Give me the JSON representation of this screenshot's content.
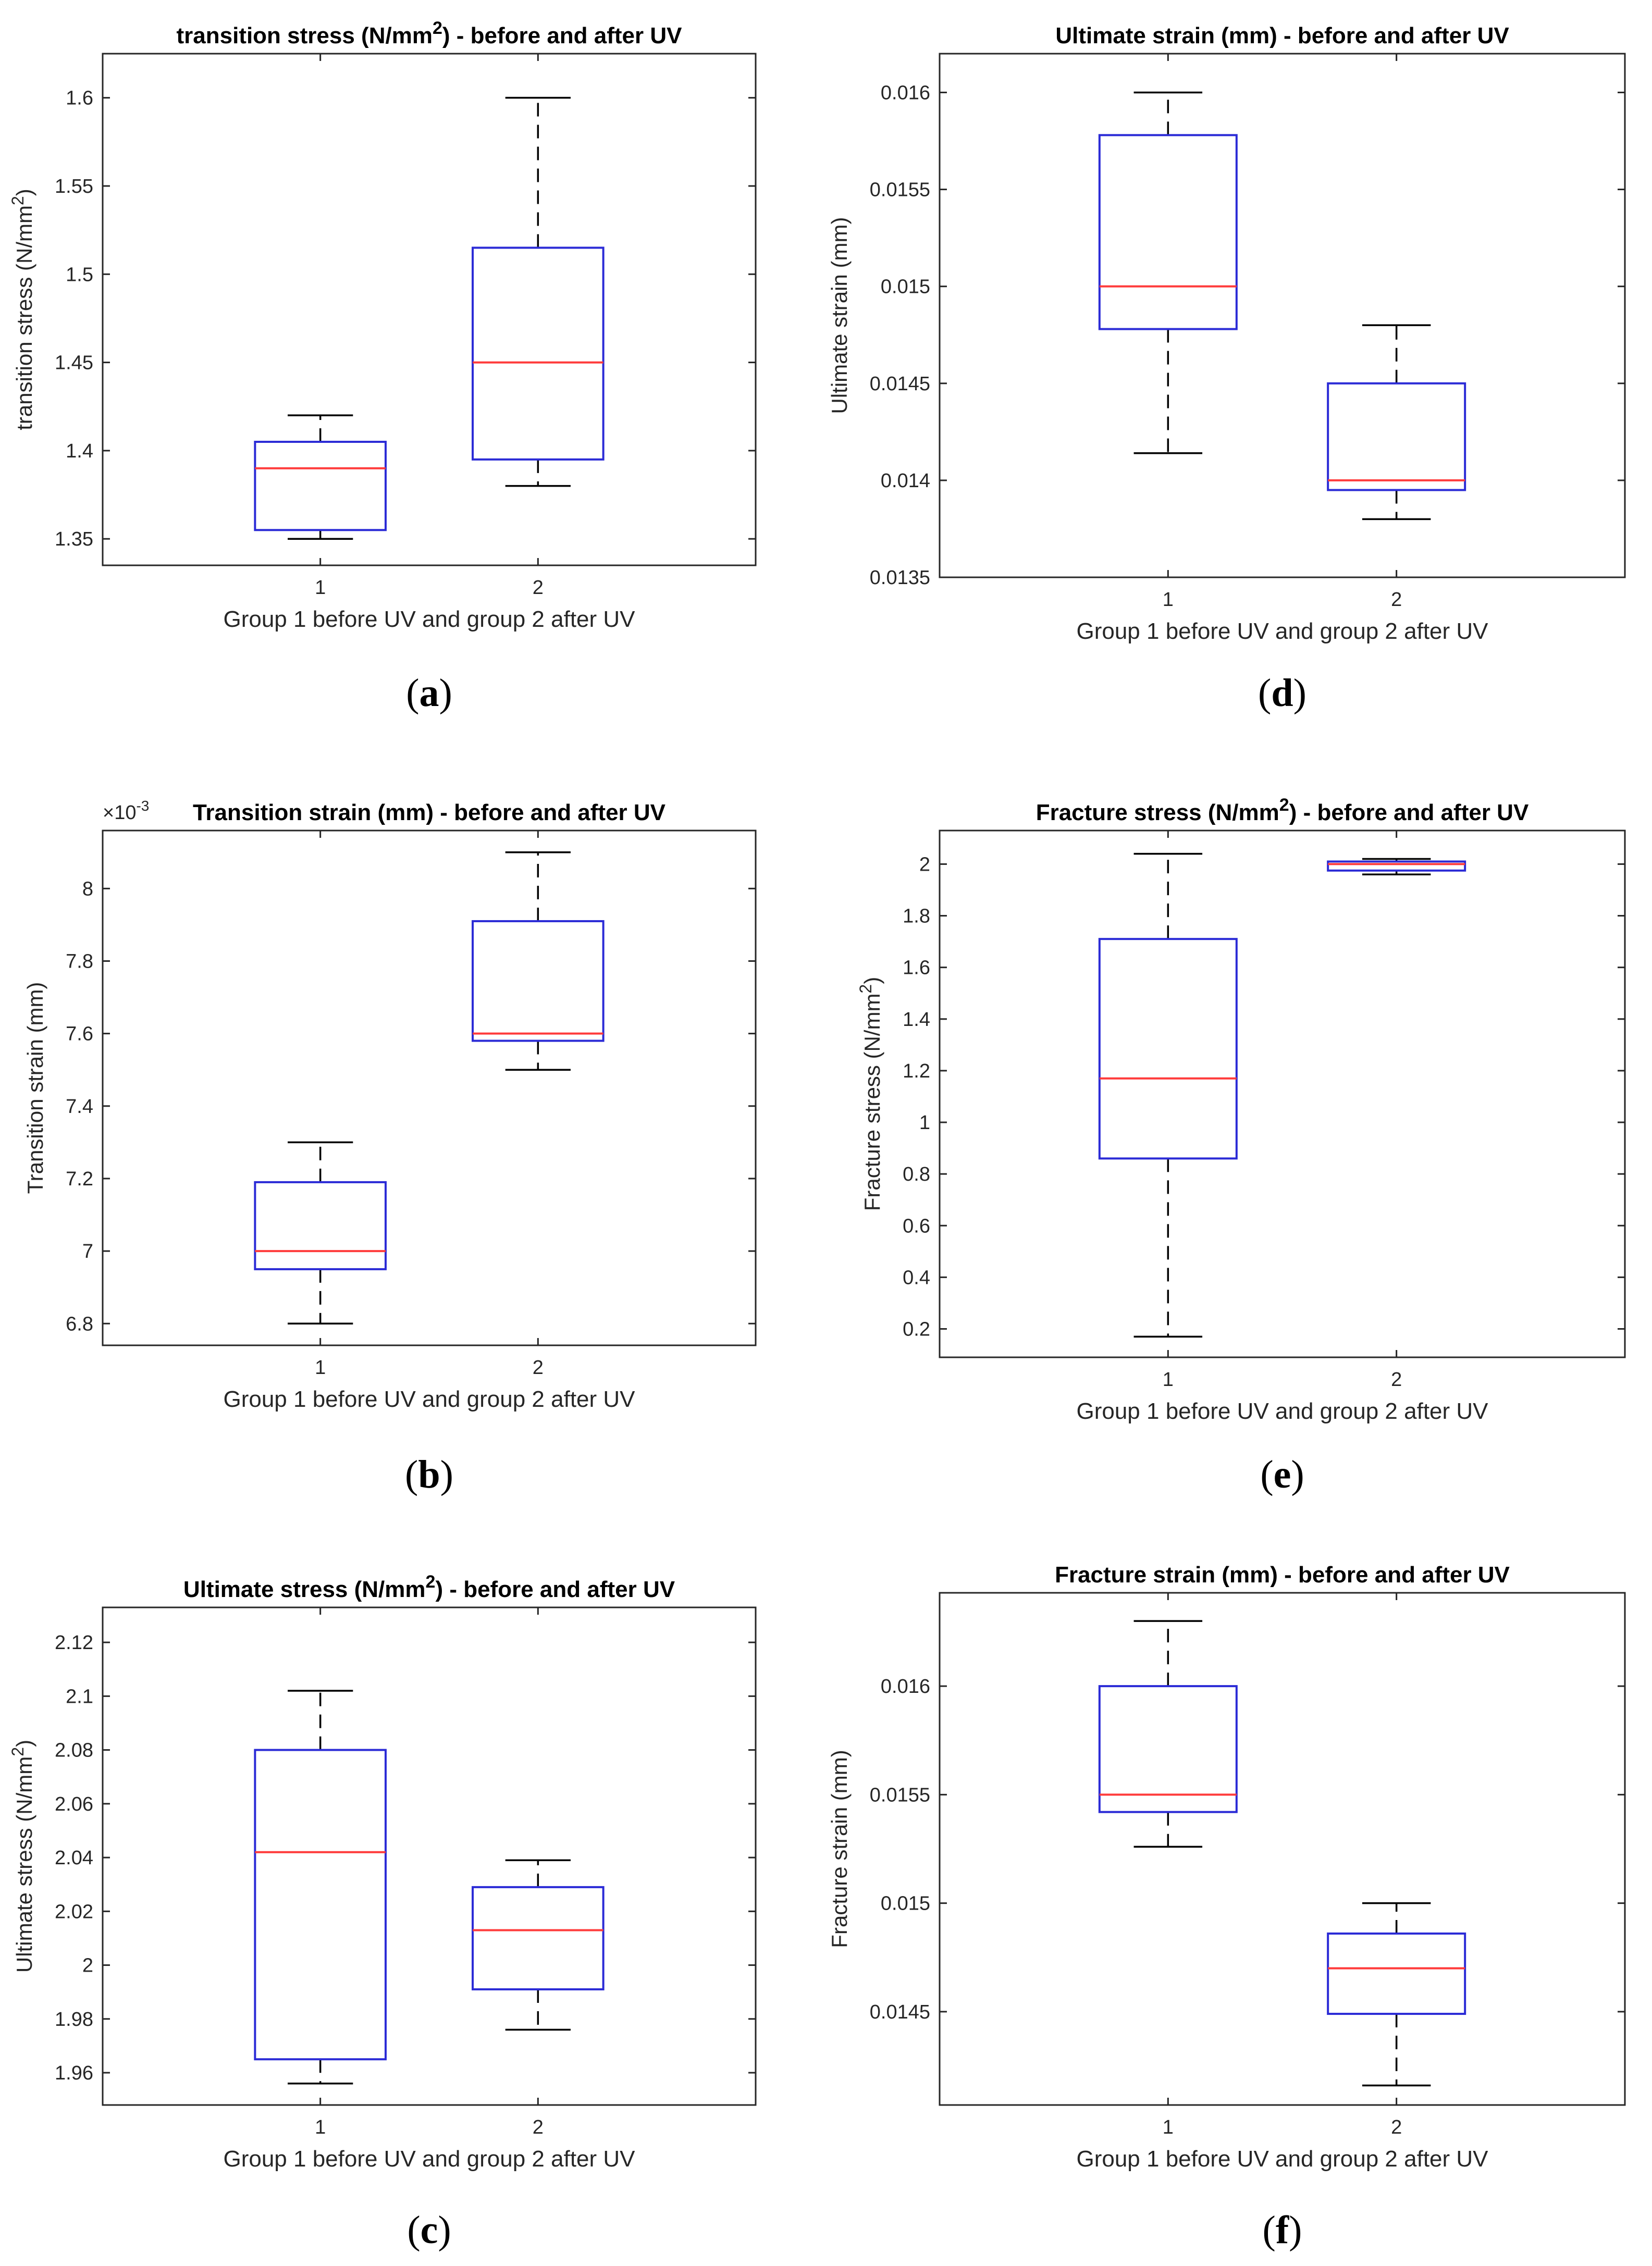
{
  "figure": {
    "captions": [
      "(a)",
      "(b)",
      "(c)",
      "(d)",
      "(e)",
      "(f)"
    ]
  },
  "colors": {
    "box": "#2b2bd6",
    "median": "#ff3b3b",
    "whisker": "#000000",
    "axis": "#262626"
  },
  "chart_data": [
    {
      "id": "a",
      "caption_letter": "a",
      "type": "box",
      "title_prefix": "transition stress (N/mm",
      "title_sup": "2",
      "title_suffix": ") - before and after UV",
      "ylabel_prefix": "transition stress (N/mm",
      "ylabel_sup": "2",
      "ylabel_suffix": ")",
      "xlabel": "Group 1 before UV and group 2 after UV",
      "categories": [
        "1",
        "2"
      ],
      "ylim": [
        1.335,
        1.625
      ],
      "yticks": [
        1.35,
        1.4,
        1.45,
        1.5,
        1.55,
        1.6
      ],
      "ytick_labels": [
        "1.35",
        "1.4",
        "1.45",
        "1.5",
        "1.55",
        "1.6"
      ],
      "exponent_label": "",
      "boxes": [
        {
          "group": "1",
          "min": 1.35,
          "q1": 1.355,
          "median": 1.39,
          "q3": 1.405,
          "max": 1.42
        },
        {
          "group": "2",
          "min": 1.38,
          "q1": 1.395,
          "median": 1.45,
          "q3": 1.515,
          "max": 1.6
        }
      ]
    },
    {
      "id": "b",
      "caption_letter": "b",
      "type": "box",
      "title_prefix": "Transition strain (mm) - before and after UV",
      "title_sup": "",
      "title_suffix": "",
      "ylabel_prefix": "Transition strain (mm)",
      "ylabel_sup": "",
      "ylabel_suffix": "",
      "xlabel": "Group 1 before UV and group 2 after UV",
      "categories": [
        "1",
        "2"
      ],
      "ylim": [
        6.74,
        8.16
      ],
      "yticks": [
        6.8,
        7,
        7.2,
        7.4,
        7.6,
        7.8,
        8
      ],
      "ytick_labels": [
        "6.8",
        "7",
        "7.2",
        "7.4",
        "7.6",
        "7.8",
        "8"
      ],
      "exponent_label": "×10",
      "exponent_power": "-3",
      "boxes": [
        {
          "group": "1",
          "min": 6.8,
          "q1": 6.95,
          "median": 7.0,
          "q3": 7.19,
          "max": 7.3
        },
        {
          "group": "2",
          "min": 7.5,
          "q1": 7.58,
          "median": 7.6,
          "q3": 7.91,
          "max": 8.1
        }
      ]
    },
    {
      "id": "c",
      "caption_letter": "c",
      "type": "box",
      "title_prefix": "Ultimate stress (N/mm",
      "title_sup": "2",
      "title_suffix": ") - before and after UV",
      "ylabel_prefix": "Ultimate stress (N/mm",
      "ylabel_sup": "2",
      "ylabel_suffix": ")",
      "xlabel": "Group 1 before UV and group 2 after UV",
      "categories": [
        "1",
        "2"
      ],
      "ylim": [
        1.948,
        2.133
      ],
      "yticks": [
        1.96,
        1.98,
        2,
        2.02,
        2.04,
        2.06,
        2.08,
        2.1,
        2.12
      ],
      "ytick_labels": [
        "1.96",
        "1.98",
        "2",
        "2.02",
        "2.04",
        "2.06",
        "2.08",
        "2.1",
        "2.12"
      ],
      "exponent_label": "",
      "boxes": [
        {
          "group": "1",
          "min": 1.956,
          "q1": 1.965,
          "median": 2.042,
          "q3": 2.08,
          "max": 2.102
        },
        {
          "group": "2",
          "min": 1.976,
          "q1": 1.991,
          "median": 2.013,
          "q3": 2.029,
          "max": 2.039
        }
      ]
    },
    {
      "id": "d",
      "caption_letter": "d",
      "type": "box",
      "title_prefix": "Ultimate strain (mm) - before and after UV",
      "title_sup": "",
      "title_suffix": "",
      "ylabel_prefix": "Ultimate strain (mm)",
      "ylabel_sup": "",
      "ylabel_suffix": "",
      "xlabel": "Group 1 before UV and group 2 after UV",
      "categories": [
        "1",
        "2"
      ],
      "ylim": [
        0.0135,
        0.0162
      ],
      "yticks": [
        0.0135,
        0.014,
        0.0145,
        0.015,
        0.0155,
        0.016
      ],
      "ytick_labels": [
        "0.0135",
        "0.014",
        "0.0145",
        "0.015",
        "0.0155",
        "0.016"
      ],
      "exponent_label": "",
      "boxes": [
        {
          "group": "1",
          "min": 0.01414,
          "q1": 0.01478,
          "median": 0.015,
          "q3": 0.01578,
          "max": 0.016
        },
        {
          "group": "2",
          "min": 0.0138,
          "q1": 0.01395,
          "median": 0.014,
          "q3": 0.0145,
          "max": 0.0148
        }
      ]
    },
    {
      "id": "e",
      "caption_letter": "e",
      "type": "box",
      "title_prefix": "Fracture stress (N/mm",
      "title_sup": "2",
      "title_suffix": ") - before and after UV",
      "ylabel_prefix": "Fracture stress (N/mm",
      "ylabel_sup": "2",
      "ylabel_suffix": ")",
      "xlabel": "Group 1 before UV and group 2 after UV",
      "categories": [
        "1",
        "2"
      ],
      "ylim": [
        0.09,
        2.13
      ],
      "yticks": [
        0.2,
        0.4,
        0.6,
        0.8,
        1,
        1.2,
        1.4,
        1.6,
        1.8,
        2
      ],
      "ytick_labels": [
        "0.2",
        "0.4",
        "0.6",
        "0.8",
        "1",
        "1.2",
        "1.4",
        "1.6",
        "1.8",
        "2"
      ],
      "exponent_label": "",
      "boxes": [
        {
          "group": "1",
          "min": 0.17,
          "q1": 0.86,
          "median": 1.17,
          "q3": 1.71,
          "max": 2.04
        },
        {
          "group": "2",
          "min": 1.96,
          "q1": 1.975,
          "median": 2.0,
          "q3": 2.01,
          "max": 2.02
        }
      ]
    },
    {
      "id": "f",
      "caption_letter": "f",
      "type": "box",
      "title_prefix": "Fracture strain (mm) - before and after UV",
      "title_sup": "",
      "title_suffix": "",
      "ylabel_prefix": "Fracture strain (mm)",
      "ylabel_sup": "",
      "ylabel_suffix": "",
      "xlabel": "Group 1 before UV and group 2 after UV",
      "categories": [
        "1",
        "2"
      ],
      "ylim": [
        0.01407,
        0.01643
      ],
      "yticks": [
        0.0145,
        0.015,
        0.0155,
        0.016
      ],
      "ytick_labels": [
        "0.0145",
        "0.015",
        "0.0155",
        "0.016"
      ],
      "exponent_label": "",
      "boxes": [
        {
          "group": "1",
          "min": 0.01526,
          "q1": 0.01542,
          "median": 0.0155,
          "q3": 0.016,
          "max": 0.0163
        },
        {
          "group": "2",
          "min": 0.01416,
          "q1": 0.01449,
          "median": 0.0147,
          "q3": 0.01486,
          "max": 0.015
        }
      ]
    }
  ]
}
